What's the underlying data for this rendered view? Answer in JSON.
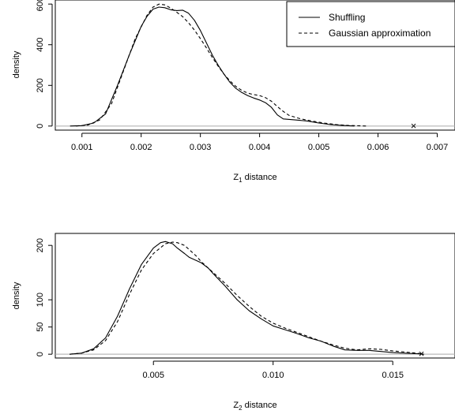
{
  "legend": {
    "entries": [
      {
        "label": "Shuffling",
        "style": "solid"
      },
      {
        "label": "Gaussian approximation",
        "style": "dashed"
      }
    ],
    "placement": "top-right"
  },
  "chart_data": [
    {
      "type": "line",
      "xlabel_main": "Z",
      "xlabel_sub": "1",
      "xlabel_rest": " distance",
      "ylabel": "density",
      "xlim": [
        0.00055,
        0.0073
      ],
      "ylim": [
        -20,
        620
      ],
      "xticks": [
        0.001,
        0.002,
        0.003,
        0.004,
        0.005,
        0.006,
        0.007
      ],
      "xtick_labels": [
        "0.001",
        "0.002",
        "0.003",
        "0.004",
        "0.005",
        "0.006",
        "0.007"
      ],
      "yticks": [
        0,
        200,
        400,
        600
      ],
      "ytick_labels": [
        "0",
        "200",
        "400",
        "600"
      ],
      "baseline": 0,
      "observed_marker": {
        "x": 0.0066,
        "y": 0,
        "label": "×"
      },
      "series": [
        {
          "name": "Shuffling",
          "style": "solid",
          "x": [
            0.0008,
            0.001,
            0.0012,
            0.0014,
            0.0016,
            0.0018,
            0.002,
            0.0021,
            0.0022,
            0.0023,
            0.0024,
            0.0025,
            0.0026,
            0.0027,
            0.0028,
            0.0029,
            0.003,
            0.0031,
            0.0032,
            0.0033,
            0.0034,
            0.0035,
            0.0036,
            0.0037,
            0.0038,
            0.0039,
            0.004,
            0.0041,
            0.0042,
            0.0043,
            0.0044,
            0.0046,
            0.0048,
            0.005,
            0.0052,
            0.0054,
            0.0056
          ],
          "y": [
            0,
            2,
            15,
            60,
            200,
            350,
            490,
            540,
            575,
            585,
            582,
            572,
            568,
            570,
            555,
            520,
            470,
            410,
            350,
            300,
            255,
            215,
            185,
            165,
            150,
            138,
            128,
            115,
            92,
            55,
            35,
            30,
            25,
            15,
            7,
            3,
            0
          ]
        },
        {
          "name": "Gaussian approximation",
          "style": "dashed",
          "x": [
            0.0009,
            0.0011,
            0.0013,
            0.0015,
            0.0017,
            0.0019,
            0.0021,
            0.0022,
            0.0023,
            0.0024,
            0.0025,
            0.0026,
            0.0027,
            0.0028,
            0.0029,
            0.003,
            0.0031,
            0.0032,
            0.0033,
            0.0034,
            0.0035,
            0.0036,
            0.0037,
            0.0038,
            0.0039,
            0.004,
            0.0041,
            0.0042,
            0.0043,
            0.0044,
            0.0045,
            0.0047,
            0.0049,
            0.0051,
            0.0053,
            0.0055,
            0.0058
          ],
          "y": [
            0,
            5,
            30,
            110,
            270,
            430,
            545,
            585,
            600,
            596,
            580,
            560,
            538,
            508,
            472,
            430,
            385,
            338,
            295,
            255,
            222,
            195,
            175,
            162,
            155,
            150,
            140,
            122,
            96,
            72,
            52,
            35,
            24,
            14,
            7,
            3,
            0
          ]
        }
      ]
    },
    {
      "type": "line",
      "xlabel_main": "Z",
      "xlabel_sub": "2",
      "xlabel_rest": " distance",
      "ylabel": "density",
      "xlim": [
        0.0009,
        0.0176
      ],
      "ylim": [
        -7,
        222
      ],
      "xticks": [
        0.005,
        0.01,
        0.015
      ],
      "xtick_labels": [
        "0.005",
        "0.010",
        "0.015"
      ],
      "yticks": [
        0,
        50,
        100,
        200
      ],
      "ytick_labels": [
        "0",
        "50",
        "100",
        "200"
      ],
      "baseline": 0,
      "observed_marker": {
        "x": 0.0162,
        "y": 0,
        "label": "×"
      },
      "series": [
        {
          "name": "Shuffling",
          "style": "solid",
          "x": [
            0.0015,
            0.002,
            0.0025,
            0.003,
            0.0035,
            0.004,
            0.0045,
            0.005,
            0.0053,
            0.0055,
            0.0058,
            0.006,
            0.0063,
            0.0065,
            0.0068,
            0.007,
            0.0073,
            0.0075,
            0.008,
            0.0085,
            0.009,
            0.0095,
            0.01,
            0.0105,
            0.011,
            0.0115,
            0.012,
            0.0125,
            0.013,
            0.0135,
            0.014,
            0.0145,
            0.015,
            0.0155,
            0.016,
            0.0163
          ],
          "y": [
            0,
            2,
            10,
            30,
            70,
            120,
            165,
            195,
            205,
            207,
            203,
            195,
            185,
            178,
            172,
            168,
            158,
            148,
            125,
            100,
            80,
            65,
            52,
            45,
            38,
            30,
            24,
            15,
            8,
            7,
            7,
            5,
            3,
            2,
            1,
            0
          ]
        },
        {
          "name": "Gaussian approximation",
          "style": "dashed",
          "x": [
            0.0015,
            0.002,
            0.0025,
            0.003,
            0.0035,
            0.004,
            0.0045,
            0.005,
            0.0055,
            0.0058,
            0.006,
            0.0063,
            0.0065,
            0.0068,
            0.007,
            0.0075,
            0.008,
            0.0085,
            0.009,
            0.0095,
            0.01,
            0.0105,
            0.011,
            0.0115,
            0.012,
            0.0125,
            0.013,
            0.0135,
            0.014,
            0.0145,
            0.015,
            0.0155,
            0.016,
            0.0163
          ],
          "y": [
            0,
            2,
            8,
            25,
            60,
            110,
            155,
            185,
            203,
            206,
            205,
            200,
            192,
            180,
            170,
            150,
            130,
            108,
            88,
            70,
            57,
            48,
            40,
            32,
            24,
            17,
            11,
            8,
            10,
            9,
            6,
            4,
            2,
            0
          ]
        }
      ]
    }
  ]
}
